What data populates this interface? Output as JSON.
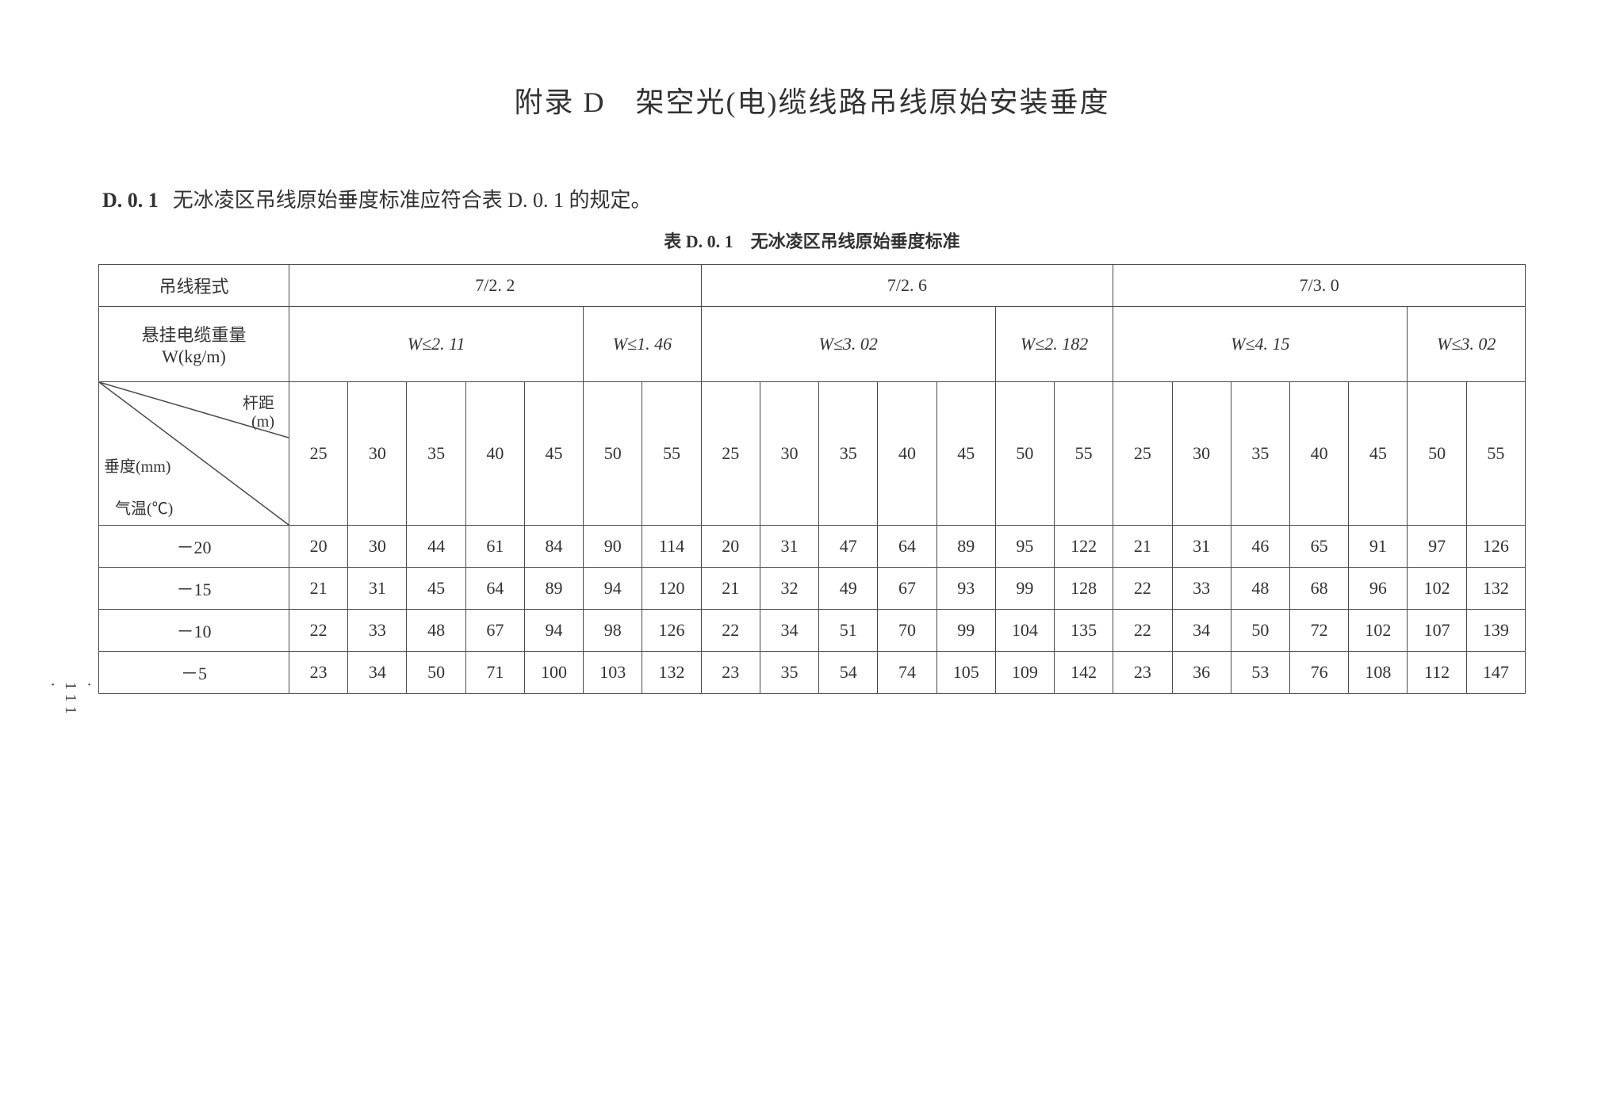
{
  "title": "附录 D　架空光(电)缆线路吊线原始安装垂度",
  "section": {
    "number": "D. 0. 1",
    "text": "无冰凌区吊线原始垂度标准应符合表 D. 0. 1 的规定。"
  },
  "table_caption": "表 D. 0. 1　无冰凌区吊线原始垂度标准",
  "header": {
    "row1_label": "吊线程式",
    "row1_groups": [
      "7/2. 2",
      "7/2. 6",
      "7/3. 0"
    ],
    "row2_label": "悬挂电缆重量\nW(kg/m)",
    "row2_groups": [
      "W≤2. 11",
      "W≤1. 46",
      "W≤3. 02",
      "W≤2. 182",
      "W≤4. 15",
      "W≤3. 02"
    ],
    "diag_labels": {
      "top": "杆距\n(m)",
      "left": "垂度(mm)",
      "bottom": "气温(℃)"
    },
    "col_headers": [
      "25",
      "30",
      "35",
      "40",
      "45",
      "50",
      "55",
      "25",
      "30",
      "35",
      "40",
      "45",
      "50",
      "55",
      "25",
      "30",
      "35",
      "40",
      "45",
      "50",
      "55"
    ]
  },
  "rows": [
    {
      "temp": "－20",
      "vals": [
        "20",
        "30",
        "44",
        "61",
        "84",
        "90",
        "114",
        "20",
        "31",
        "47",
        "64",
        "89",
        "95",
        "122",
        "21",
        "31",
        "46",
        "65",
        "91",
        "97",
        "126"
      ]
    },
    {
      "temp": "－15",
      "vals": [
        "21",
        "31",
        "45",
        "64",
        "89",
        "94",
        "120",
        "21",
        "32",
        "49",
        "67",
        "93",
        "99",
        "128",
        "22",
        "33",
        "48",
        "68",
        "96",
        "102",
        "132"
      ]
    },
    {
      "temp": "－10",
      "vals": [
        "22",
        "33",
        "48",
        "67",
        "94",
        "98",
        "126",
        "22",
        "34",
        "51",
        "70",
        "99",
        "104",
        "135",
        "22",
        "34",
        "50",
        "72",
        "102",
        "107",
        "139"
      ]
    },
    {
      "temp": "－5",
      "vals": [
        "23",
        "34",
        "50",
        "71",
        "100",
        "103",
        "132",
        "23",
        "35",
        "54",
        "74",
        "105",
        "109",
        "142",
        "23",
        "36",
        "53",
        "76",
        "108",
        "112",
        "147"
      ]
    }
  ],
  "page_number": "· 111 ·",
  "colors": {
    "text": "#323232",
    "border": "#4a4a4a",
    "background": "#ffffff"
  },
  "fonts": {
    "title_size_pt": 27,
    "body_size_pt": 17,
    "caption_size_pt": 17
  }
}
